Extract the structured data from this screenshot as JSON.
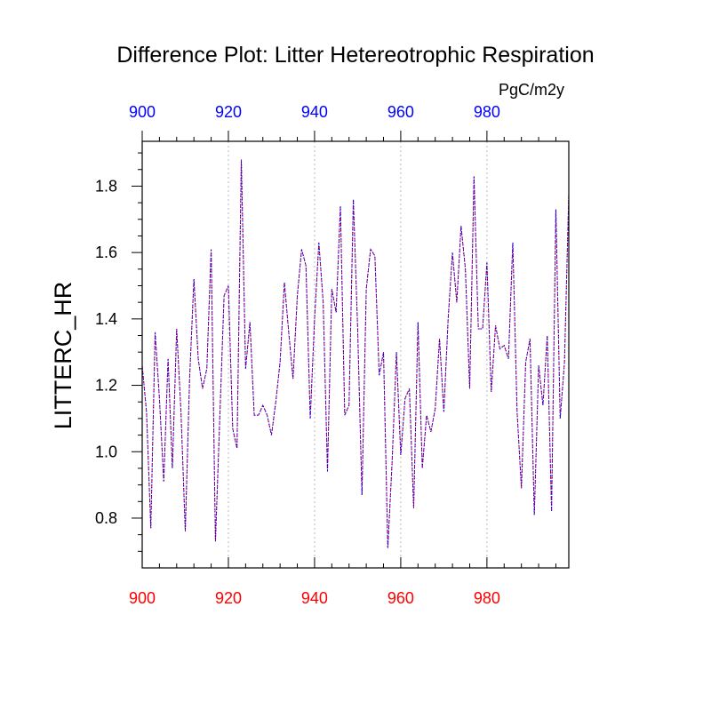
{
  "chart_data": {
    "type": "line",
    "title": "Difference Plot: Litter Hetereotrophic Respiration",
    "ylabel": "LITTERC_HR",
    "units": "PgC/m2y",
    "xlim": [
      900,
      999
    ],
    "ylim": [
      0.65,
      1.935
    ],
    "x_ticks": [
      900,
      920,
      940,
      960,
      980
    ],
    "y_ticks": [
      0.8,
      1.0,
      1.2,
      1.4,
      1.6,
      1.8
    ],
    "y_tick_labels": [
      "0.8",
      "1.0",
      "1.2",
      "1.4",
      "1.6",
      "1.8"
    ],
    "grid": "x-dotted",
    "colors": {
      "bottom_axis_labels": "#ff0000",
      "top_axis_labels": "#0000ff",
      "grid": "#bbbbbb"
    },
    "x": [
      900,
      901,
      902,
      903,
      904,
      905,
      906,
      907,
      908,
      909,
      910,
      911,
      912,
      913,
      914,
      915,
      916,
      917,
      918,
      919,
      920,
      921,
      922,
      923,
      924,
      925,
      926,
      927,
      928,
      929,
      930,
      931,
      932,
      933,
      934,
      935,
      936,
      937,
      938,
      939,
      940,
      941,
      942,
      943,
      944,
      945,
      946,
      947,
      948,
      949,
      950,
      951,
      952,
      953,
      954,
      955,
      956,
      957,
      958,
      959,
      960,
      961,
      962,
      963,
      964,
      965,
      966,
      967,
      968,
      969,
      970,
      971,
      972,
      973,
      974,
      975,
      976,
      977,
      978,
      979,
      980,
      981,
      982,
      983,
      984,
      985,
      986,
      987,
      988,
      989,
      990,
      991,
      992,
      993,
      994,
      995,
      996,
      997,
      998,
      999
    ],
    "series": [
      {
        "color": "#ff0000",
        "style": "dashed",
        "values": [
          1.26,
          1.12,
          0.77,
          1.36,
          1.16,
          0.91,
          1.28,
          0.95,
          1.37,
          1.12,
          0.76,
          1.22,
          1.52,
          1.28,
          1.19,
          1.25,
          1.61,
          0.73,
          1.1,
          1.47,
          1.5,
          1.07,
          1.01,
          1.88,
          1.25,
          1.39,
          1.11,
          1.11,
          1.14,
          1.11,
          1.05,
          1.15,
          1.27,
          1.51,
          1.36,
          1.22,
          1.47,
          1.61,
          1.56,
          1.1,
          1.4,
          1.63,
          1.45,
          0.94,
          1.49,
          1.42,
          1.74,
          1.11,
          1.14,
          1.76,
          1.37,
          0.87,
          1.49,
          1.61,
          1.59,
          1.23,
          1.3,
          0.71,
          0.97,
          1.3,
          0.99,
          1.16,
          1.19,
          0.83,
          1.39,
          0.95,
          1.11,
          1.06,
          1.13,
          1.34,
          1.12,
          1.4,
          1.6,
          1.45,
          1.68,
          1.55,
          1.19,
          1.83,
          1.37,
          1.37,
          1.57,
          1.18,
          1.38,
          1.31,
          1.32,
          1.28,
          1.63,
          1.12,
          0.89,
          1.27,
          1.34,
          0.81,
          1.26,
          1.14,
          1.35,
          0.82,
          1.73,
          1.1,
          1.27,
          1.78
        ]
      },
      {
        "color": "#0000ff",
        "style": "dotted",
        "values": [
          1.26,
          1.12,
          0.77,
          1.36,
          1.16,
          0.91,
          1.28,
          0.95,
          1.37,
          1.12,
          0.76,
          1.22,
          1.52,
          1.28,
          1.19,
          1.25,
          1.61,
          0.73,
          1.1,
          1.47,
          1.5,
          1.07,
          1.01,
          1.88,
          1.25,
          1.39,
          1.11,
          1.11,
          1.14,
          1.11,
          1.05,
          1.15,
          1.27,
          1.51,
          1.36,
          1.22,
          1.47,
          1.61,
          1.56,
          1.1,
          1.4,
          1.63,
          1.45,
          0.94,
          1.49,
          1.42,
          1.74,
          1.11,
          1.14,
          1.76,
          1.37,
          0.87,
          1.49,
          1.61,
          1.59,
          1.23,
          1.3,
          0.71,
          0.97,
          1.3,
          0.99,
          1.16,
          1.19,
          0.83,
          1.39,
          0.95,
          1.11,
          1.06,
          1.13,
          1.34,
          1.12,
          1.4,
          1.6,
          1.45,
          1.68,
          1.55,
          1.19,
          1.83,
          1.37,
          1.37,
          1.57,
          1.18,
          1.38,
          1.31,
          1.32,
          1.28,
          1.63,
          1.12,
          0.89,
          1.27,
          1.34,
          0.81,
          1.26,
          1.14,
          1.35,
          0.82,
          1.73,
          1.1,
          1.27,
          1.78
        ]
      }
    ]
  }
}
